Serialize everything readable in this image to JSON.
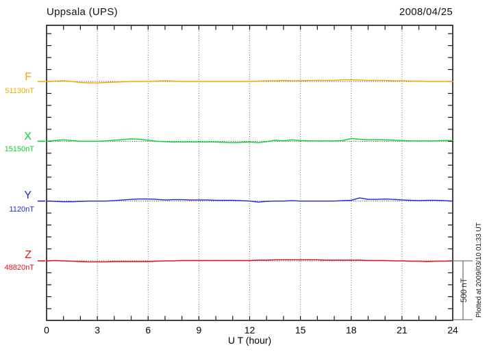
{
  "header": {
    "title": "Uppsala (UPS)",
    "date": "2008/04/25"
  },
  "axis": {
    "xlabel": "U T (hour)",
    "xtick_labels": [
      "0",
      "3",
      "6",
      "9",
      "12",
      "15",
      "18",
      "21",
      "24"
    ]
  },
  "side": {
    "scale_label": "500 nT",
    "plotted_at": "Plotted at 2009/03/10 01:33 UT"
  },
  "components": [
    {
      "label": "F",
      "value": "51130nT",
      "color": "#f7a600"
    },
    {
      "label": "X",
      "value": "15150nT",
      "color": "#00d42a"
    },
    {
      "label": "Y",
      "value": "1120nT",
      "color": "#2323d9"
    },
    {
      "label": "Z",
      "value": "48820nT",
      "color": "#e01414"
    }
  ],
  "chart_data": {
    "type": "line",
    "title": "Uppsala (UPS)",
    "date": "2008/04/25",
    "xlabel": "U T (hour)",
    "xlim": [
      0,
      24
    ],
    "xticks": [
      0,
      3,
      6,
      9,
      12,
      15,
      18,
      21,
      24
    ],
    "x_step_hours": 0.5,
    "grid": "vertical-dotted-every-3h",
    "ytick_interval_nT": 100,
    "scale_bar_nT": 500,
    "series": [
      {
        "name": "F",
        "baseline_nT": 51130,
        "color": "#f7a600",
        "offsets_nT": [
          0,
          3,
          6,
          0,
          -9,
          -12,
          -12,
          -9,
          -6,
          -3,
          0,
          0,
          0,
          3,
          6,
          3,
          0,
          0,
          0,
          0,
          0,
          0,
          0,
          0,
          0,
          3,
          6,
          6,
          9,
          6,
          6,
          9,
          9,
          9,
          9,
          14,
          14,
          12,
          9,
          9,
          9,
          6,
          6,
          3,
          3,
          0,
          0,
          0,
          0
        ]
      },
      {
        "name": "X",
        "baseline_nT": 15150,
        "color": "#00d42a",
        "offsets_nT": [
          0,
          6,
          12,
          6,
          0,
          0,
          0,
          3,
          9,
          14,
          20,
          17,
          9,
          0,
          -3,
          -6,
          -6,
          -6,
          -6,
          -6,
          -6,
          -9,
          -12,
          -9,
          -6,
          -12,
          -3,
          9,
          3,
          12,
          6,
          3,
          3,
          3,
          3,
          6,
          23,
          17,
          12,
          14,
          12,
          9,
          6,
          3,
          3,
          3,
          3,
          6,
          6
        ]
      },
      {
        "name": "Y",
        "baseline_nT": 1120,
        "color": "#2323d9",
        "offsets_nT": [
          0,
          -3,
          -6,
          -6,
          -3,
          0,
          0,
          0,
          3,
          9,
          14,
          17,
          17,
          14,
          9,
          12,
          12,
          9,
          9,
          9,
          6,
          6,
          6,
          3,
          0,
          -9,
          -3,
          0,
          0,
          3,
          0,
          0,
          0,
          0,
          0,
          3,
          6,
          26,
          14,
          14,
          17,
          14,
          9,
          6,
          3,
          6,
          6,
          3,
          0
        ]
      },
      {
        "name": "Z",
        "baseline_nT": 48820,
        "color": "#e01414",
        "offsets_nT": [
          0,
          3,
          0,
          -3,
          -6,
          -9,
          -9,
          -9,
          -6,
          -6,
          -6,
          -6,
          -6,
          -3,
          0,
          0,
          3,
          3,
          3,
          3,
          3,
          3,
          3,
          3,
          3,
          6,
          6,
          9,
          9,
          9,
          9,
          9,
          9,
          6,
          6,
          6,
          6,
          6,
          3,
          3,
          3,
          0,
          0,
          -3,
          -3,
          -6,
          -3,
          -3,
          0
        ]
      }
    ],
    "annotations": {
      "scale_label": "500 nT",
      "plotted_at": "Plotted at 2009/03/10 01:33 UT"
    }
  }
}
